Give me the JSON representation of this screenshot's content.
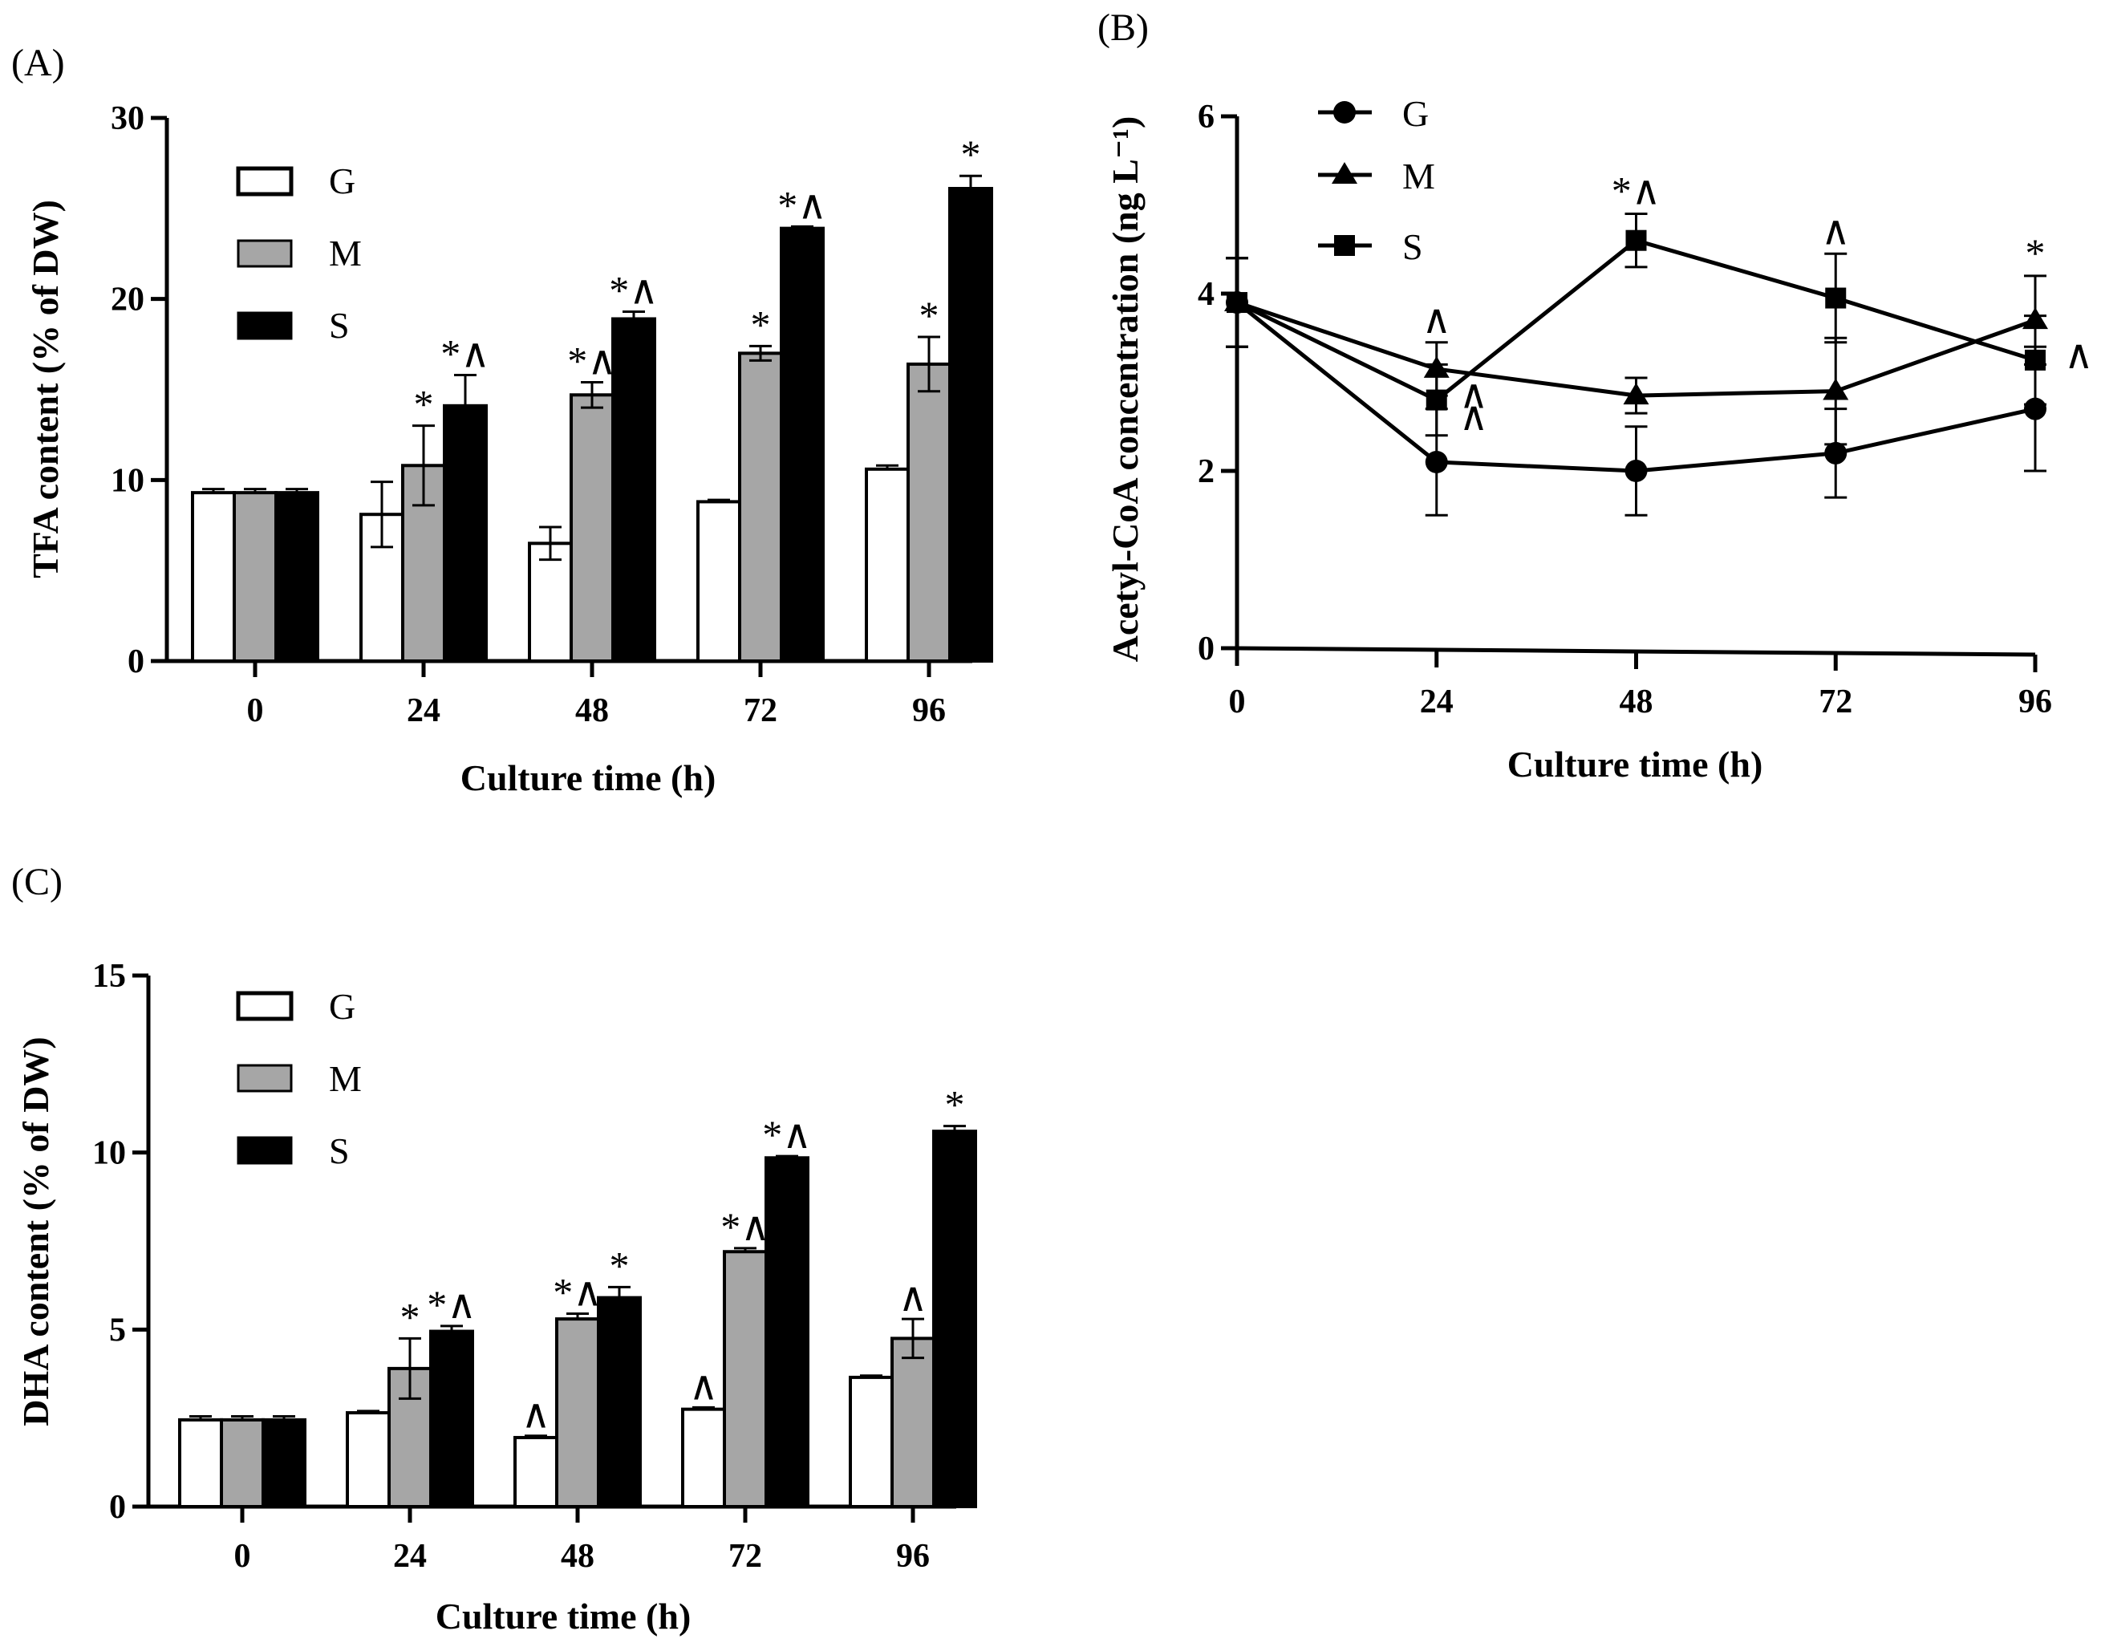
{
  "colors": {
    "G": "#ffffff",
    "M": "#a6a6a6",
    "S": "#000000",
    "axis": "#000000"
  },
  "chart_data": [
    {
      "panel": "(A)",
      "type": "bar",
      "xlabel": "Culture time (h)",
      "ylabel": "TFA content (% of DW)",
      "categories": [
        "0",
        "24",
        "48",
        "72",
        "96"
      ],
      "ylim": [
        0,
        30
      ],
      "yticks": [
        "0",
        "10",
        "20",
        "30"
      ],
      "legend_position": "top-left",
      "series": [
        {
          "name": "G",
          "values": [
            9.3,
            8.1,
            6.5,
            8.8,
            10.6
          ],
          "errors": [
            0.2,
            1.8,
            0.9,
            0.1,
            0.2
          ],
          "annotations": [
            "",
            "",
            "",
            "",
            ""
          ]
        },
        {
          "name": "M",
          "values": [
            9.3,
            10.8,
            14.7,
            17.0,
            16.4
          ],
          "errors": [
            0.2,
            2.2,
            0.7,
            0.4,
            1.5
          ],
          "annotations": [
            "",
            "*",
            "*^",
            "*",
            "*"
          ]
        },
        {
          "name": "S",
          "values": [
            9.3,
            14.1,
            18.9,
            23.9,
            26.1
          ],
          "errors": [
            0.2,
            1.7,
            0.4,
            0.1,
            0.7
          ],
          "annotations": [
            "",
            "*^",
            "*^",
            "*^",
            "*"
          ]
        }
      ]
    },
    {
      "panel": "(B)",
      "type": "line",
      "xlabel": "Culture time (h)",
      "ylabel": "Acetyl-CoA concentration (ng L⁻¹)",
      "x": [
        "0",
        "24",
        "48",
        "72",
        "96"
      ],
      "ylim": [
        0,
        6
      ],
      "yticks": [
        "0",
        "2",
        "4",
        "6"
      ],
      "legend_position": "top-left",
      "series": [
        {
          "name": "G",
          "marker": "circle",
          "values": [
            3.9,
            2.1,
            2.0,
            2.2,
            2.7
          ],
          "errors": [
            0.5,
            0.6,
            0.5,
            0.5,
            0.7
          ],
          "annotations": [
            "",
            "^",
            "",
            "",
            ""
          ]
        },
        {
          "name": "M",
          "marker": "triangle",
          "values": [
            3.9,
            3.15,
            2.85,
            2.9,
            3.7
          ],
          "errors": [
            0.5,
            0.3,
            0.2,
            0.6,
            0.5
          ],
          "annotations": [
            "",
            "^",
            "",
            "",
            "*"
          ]
        },
        {
          "name": "S",
          "marker": "square",
          "values": [
            3.9,
            2.8,
            4.6,
            3.95,
            3.25
          ],
          "errors": [
            0.5,
            0.4,
            0.3,
            0.5,
            0.5
          ],
          "annotations": [
            "",
            "^",
            "*^",
            "^",
            "^"
          ]
        }
      ]
    },
    {
      "panel": "(C)",
      "type": "bar",
      "xlabel": "Culture time (h)",
      "ylabel": "DHA content (% of DW)",
      "categories": [
        "0",
        "24",
        "48",
        "72",
        "96"
      ],
      "ylim": [
        0,
        15
      ],
      "yticks": [
        "0",
        "5",
        "10",
        "15"
      ],
      "legend_position": "top-left",
      "series": [
        {
          "name": "G",
          "values": [
            2.45,
            2.65,
            1.95,
            2.75,
            3.65
          ],
          "errors": [
            0.1,
            0.05,
            0.05,
            0.05,
            0.05
          ],
          "annotations": [
            "",
            "",
            "^",
            "^",
            ""
          ]
        },
        {
          "name": "M",
          "values": [
            2.45,
            3.9,
            5.3,
            7.2,
            4.75
          ],
          "errors": [
            0.1,
            0.85,
            0.15,
            0.1,
            0.55
          ],
          "annotations": [
            "",
            "*",
            "*^",
            "*^",
            "^"
          ]
        },
        {
          "name": "S",
          "values": [
            2.45,
            4.95,
            5.9,
            9.85,
            10.6
          ],
          "errors": [
            0.1,
            0.15,
            0.3,
            0.05,
            0.15
          ],
          "annotations": [
            "",
            "*^",
            "*",
            "*^",
            "*"
          ]
        }
      ]
    }
  ]
}
